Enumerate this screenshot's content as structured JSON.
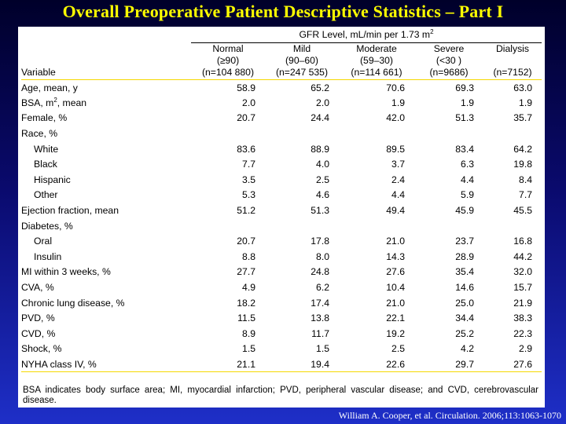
{
  "title": "Overall Preoperative Patient Descriptive Statistics – Part I",
  "table": {
    "group_header": "GFR Level, mL/min per 1.73 m",
    "group_header_sup": "2",
    "variable_header": "Variable",
    "columns": [
      {
        "name": "Normal",
        "range": "(≥90)",
        "n": "(n=104 880)"
      },
      {
        "name": "Mild",
        "range": "(90–60)",
        "n": "(n=247 535)"
      },
      {
        "name": "Moderate",
        "range": "(59–30)",
        "n": "(n=114 661)"
      },
      {
        "name": "Severe",
        "range": "(<30 )",
        "n": "(n=9686)"
      },
      {
        "name": "Dialysis",
        "range": "",
        "n": "(n=7152)"
      }
    ],
    "rows": [
      {
        "label": "Age, mean, y",
        "values": [
          "58.9",
          "65.2",
          "70.6",
          "69.3",
          "63.0"
        ]
      },
      {
        "label": "BSA, m",
        "sup": "2",
        "label_suffix": ", mean",
        "values": [
          "2.0",
          "2.0",
          "1.9",
          "1.9",
          "1.9"
        ]
      },
      {
        "label": "Female, %",
        "values": [
          "20.7",
          "24.4",
          "42.0",
          "51.3",
          "35.7"
        ]
      },
      {
        "label": "Race, %",
        "values": [
          "",
          "",
          "",
          "",
          ""
        ]
      },
      {
        "label": "White",
        "indent": true,
        "values": [
          "83.6",
          "88.9",
          "89.5",
          "83.4",
          "64.2"
        ]
      },
      {
        "label": "Black",
        "indent": true,
        "values": [
          "7.7",
          "4.0",
          "3.7",
          "6.3",
          "19.8"
        ]
      },
      {
        "label": "Hispanic",
        "indent": true,
        "values": [
          "3.5",
          "2.5",
          "2.4",
          "4.4",
          "8.4"
        ]
      },
      {
        "label": "Other",
        "indent": true,
        "values": [
          "5.3",
          "4.6",
          "4.4",
          "5.9",
          "7.7"
        ]
      },
      {
        "label": "Ejection fraction, mean",
        "values": [
          "51.2",
          "51.3",
          "49.4",
          "45.9",
          "45.5"
        ]
      },
      {
        "label": "Diabetes, %",
        "values": [
          "",
          "",
          "",
          "",
          ""
        ]
      },
      {
        "label": "Oral",
        "indent": true,
        "values": [
          "20.7",
          "17.8",
          "21.0",
          "23.7",
          "16.8"
        ]
      },
      {
        "label": "Insulin",
        "indent": true,
        "values": [
          "8.8",
          "8.0",
          "14.3",
          "28.9",
          "44.2"
        ]
      },
      {
        "label": "MI within 3 weeks, %",
        "values": [
          "27.7",
          "24.8",
          "27.6",
          "35.4",
          "32.0"
        ]
      },
      {
        "label": "CVA, %",
        "values": [
          "4.9",
          "6.2",
          "10.4",
          "14.6",
          "15.7"
        ]
      },
      {
        "label": "Chronic lung disease, %",
        "values": [
          "18.2",
          "17.4",
          "21.0",
          "25.0",
          "21.9"
        ]
      },
      {
        "label": "PVD, %",
        "values": [
          "11.5",
          "13.8",
          "22.1",
          "34.4",
          "38.3"
        ]
      },
      {
        "label": "CVD, %",
        "values": [
          "8.9",
          "11.7",
          "19.2",
          "25.2",
          "22.3"
        ]
      },
      {
        "label": "Shock, %",
        "values": [
          "1.5",
          "1.5",
          "2.5",
          "4.2",
          "2.9"
        ]
      },
      {
        "label": "NYHA class IV, %",
        "values": [
          "21.1",
          "19.4",
          "22.6",
          "29.7",
          "27.6"
        ]
      }
    ]
  },
  "footnote": "BSA indicates body surface area; MI, myocardial infarction; PVD, peripheral vascular disease; and CVD, cerebrovascular disease.",
  "citation": "William A. Cooper, et al. Circulation. 2006;113:1063-1070",
  "colors": {
    "title": "#ffff00",
    "rule": "#f5d800",
    "background_top": "#00002a",
    "background_bottom": "#1e2fc8"
  }
}
